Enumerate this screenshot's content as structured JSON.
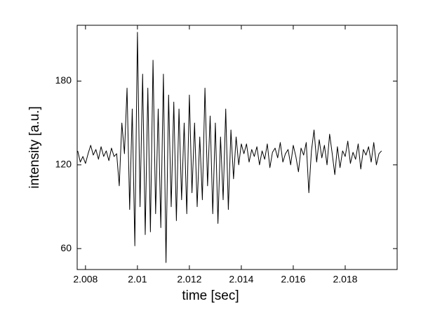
{
  "chart_data": {
    "type": "line",
    "x_label": "time [sec]",
    "y_label": "intensity [a.u.]",
    "color": "#000000",
    "xlim": [
      2.00768,
      2.02
    ],
    "ylim": [
      45,
      220
    ],
    "xticks": [
      2.008,
      2.01,
      2.012,
      2.014,
      2.016,
      2.018
    ],
    "yticks": [
      60,
      120,
      180
    ],
    "x": [
      2.0077,
      2.0078,
      2.0079,
      2.008,
      2.0081,
      2.0082,
      2.0083,
      2.0084,
      2.0085,
      2.0086,
      2.0087,
      2.0088,
      2.0089,
      2.009,
      2.0091,
      2.0092,
      2.0093,
      2.0094,
      2.0095,
      2.0096,
      2.0097,
      2.0098,
      2.0099,
      2.01,
      2.0101,
      2.0102,
      2.0103,
      2.0104,
      2.0105,
      2.0106,
      2.0107,
      2.0108,
      2.0109,
      2.011,
      2.0111,
      2.0112,
      2.0113,
      2.0114,
      2.0115,
      2.0116,
      2.0117,
      2.0118,
      2.0119,
      2.012,
      2.0121,
      2.0122,
      2.0123,
      2.0124,
      2.0125,
      2.0126,
      2.0127,
      2.0128,
      2.0129,
      2.013,
      2.0131,
      2.0132,
      2.0133,
      2.0134,
      2.0135,
      2.0136,
      2.0137,
      2.0138,
      2.0139,
      2.014,
      2.0141,
      2.0142,
      2.0143,
      2.0144,
      2.0145,
      2.0146,
      2.0147,
      2.0148,
      2.0149,
      2.015,
      2.0151,
      2.0152,
      2.0153,
      2.0154,
      2.0155,
      2.0156,
      2.0157,
      2.0158,
      2.0159,
      2.016,
      2.0161,
      2.0162,
      2.0163,
      2.0164,
      2.0165,
      2.0166,
      2.0167,
      2.0168,
      2.0169,
      2.017,
      2.0171,
      2.0172,
      2.0173,
      2.0174,
      2.0175,
      2.0176,
      2.0177,
      2.0178,
      2.0179,
      2.018,
      2.0181,
      2.0182,
      2.0183,
      2.0184,
      2.0185,
      2.0186,
      2.0187,
      2.0188,
      2.0189,
      2.019,
      2.0191,
      2.0192,
      2.0193,
      2.0194
    ],
    "values": [
      130,
      122,
      126,
      121,
      128,
      134,
      127,
      131,
      124,
      133,
      126,
      130,
      123,
      132,
      126,
      128,
      105,
      150,
      128,
      175,
      88,
      160,
      62,
      215,
      90,
      185,
      70,
      175,
      72,
      195,
      85,
      160,
      75,
      185,
      50,
      170,
      90,
      165,
      80,
      160,
      95,
      150,
      85,
      170,
      100,
      150,
      90,
      140,
      95,
      175,
      105,
      155,
      85,
      150,
      78,
      140,
      95,
      160,
      88,
      145,
      110,
      140,
      120,
      135,
      128,
      135,
      122,
      131,
      126,
      133,
      120,
      130,
      124,
      135,
      118,
      129,
      132,
      125,
      136,
      122,
      128,
      131,
      120,
      134,
      126,
      115,
      132,
      127,
      136,
      100,
      130,
      145,
      122,
      138,
      125,
      134,
      120,
      142,
      128,
      113,
      133,
      118,
      130,
      126,
      137,
      121,
      129,
      124,
      135,
      117,
      131,
      127,
      133,
      122,
      136,
      120,
      128,
      130
    ]
  }
}
